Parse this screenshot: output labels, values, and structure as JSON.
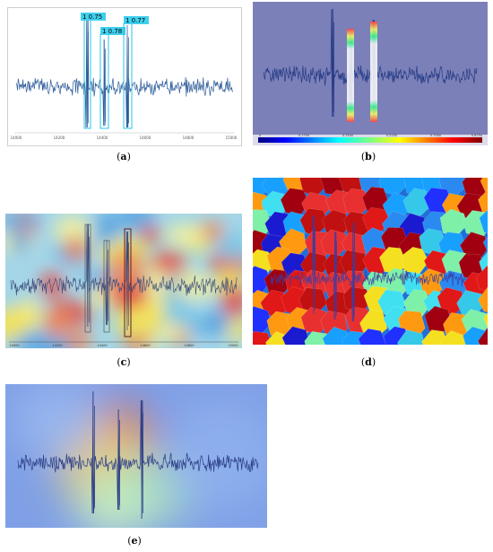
{
  "figure": {
    "captions": {
      "a": "a",
      "b": "b",
      "c": "c",
      "d": "d",
      "e": "e"
    }
  },
  "panel_a": {
    "detections": [
      {
        "label": "1  0.75"
      },
      {
        "label": "1  0.78"
      },
      {
        "label": "1  0.77"
      }
    ],
    "x_ticks": [
      "14000",
      "14200",
      "14400",
      "14600",
      "14800",
      "15000"
    ]
  },
  "panel_b": {
    "colorbar_ticks": [
      "0",
      "0.1750",
      "0.3500",
      "0.5250",
      "0.7000",
      "0.8750"
    ]
  },
  "panel_c": {
    "x_ticks": [
      "14000",
      "14200",
      "14400",
      "14600",
      "14800",
      "15000"
    ]
  },
  "colors": {
    "signal": "#2e5c9a",
    "box_border": "#29c4e8",
    "label_bg": "#3fd0ee",
    "b_background": "#7c80b8"
  }
}
